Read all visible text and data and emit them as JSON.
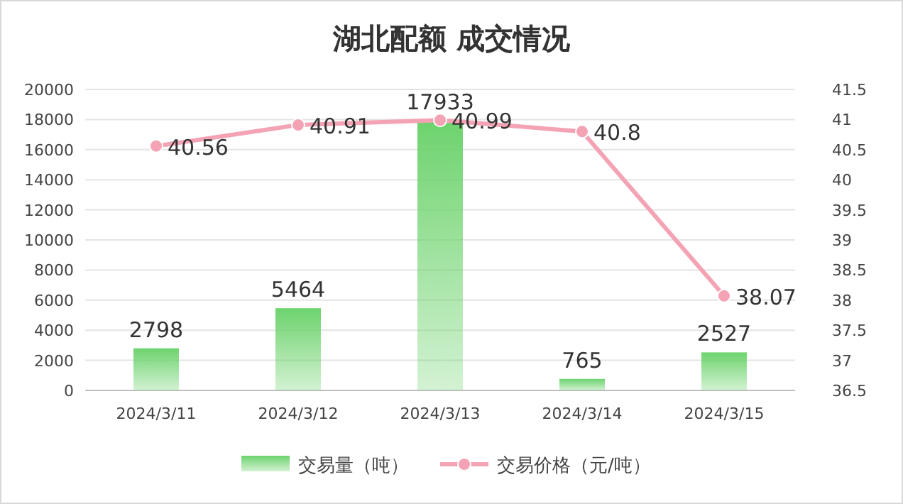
{
  "chart_data": {
    "type": "bar",
    "title": "湖北配额 成交情况",
    "categories": [
      "2024/3/11",
      "2024/3/12",
      "2024/3/13",
      "2024/3/14",
      "2024/3/15"
    ],
    "series": [
      {
        "name": "交易量（吨）",
        "color": "#6dd36d",
        "values": [
          2798,
          5464,
          17933,
          765,
          2527
        ]
      },
      {
        "name": "交易价格（元/吨）",
        "type": "line",
        "axis": "y2",
        "color": "#f4a3b4",
        "values": [
          40.56,
          40.91,
          40.99,
          40.8,
          38.07
        ]
      }
    ],
    "ylim": [
      0,
      20000
    ],
    "yticks": [
      0,
      2000,
      4000,
      6000,
      8000,
      10000,
      12000,
      14000,
      16000,
      18000,
      20000
    ],
    "y2lim": [
      36.5,
      41.5
    ],
    "y2ticks": [
      36.5,
      37,
      37.5,
      38,
      38.5,
      39,
      39.5,
      40,
      40.5,
      41,
      41.5
    ],
    "grid": "y",
    "legend": "bottom",
    "marker": "circle",
    "data_labels": true
  }
}
